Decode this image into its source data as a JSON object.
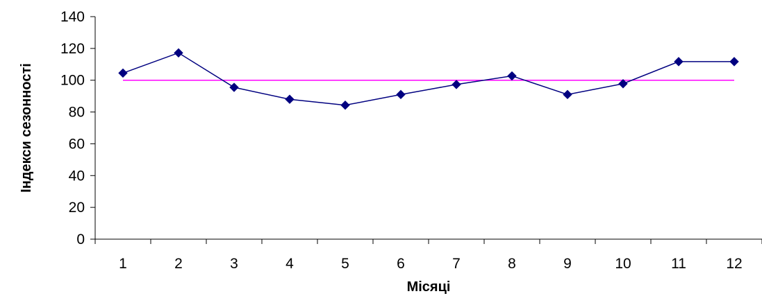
{
  "chart_data": {
    "type": "line",
    "title": "",
    "xlabel": "Місяці",
    "ylabel": "Індекси сезонності",
    "categories": [
      "1",
      "2",
      "3",
      "4",
      "5",
      "6",
      "7",
      "8",
      "9",
      "10",
      "11",
      "12"
    ],
    "ylim": [
      0,
      140
    ],
    "yticks": [
      "0",
      "20",
      "40",
      "60",
      "80",
      "100",
      "120",
      "140"
    ],
    "grid": false,
    "legend": "none",
    "series": [
      {
        "values": [
          104.5,
          117.2,
          95.5,
          88.0,
          84.3,
          91.0,
          97.3,
          102.7,
          91.0,
          97.8,
          111.7,
          111.7
        ],
        "color": "#000080",
        "marker": "diamond"
      },
      {
        "values": [
          100,
          100,
          100,
          100,
          100,
          100,
          100,
          100,
          100,
          100,
          100,
          100
        ],
        "color": "#ff00ff",
        "marker": "none"
      }
    ]
  }
}
